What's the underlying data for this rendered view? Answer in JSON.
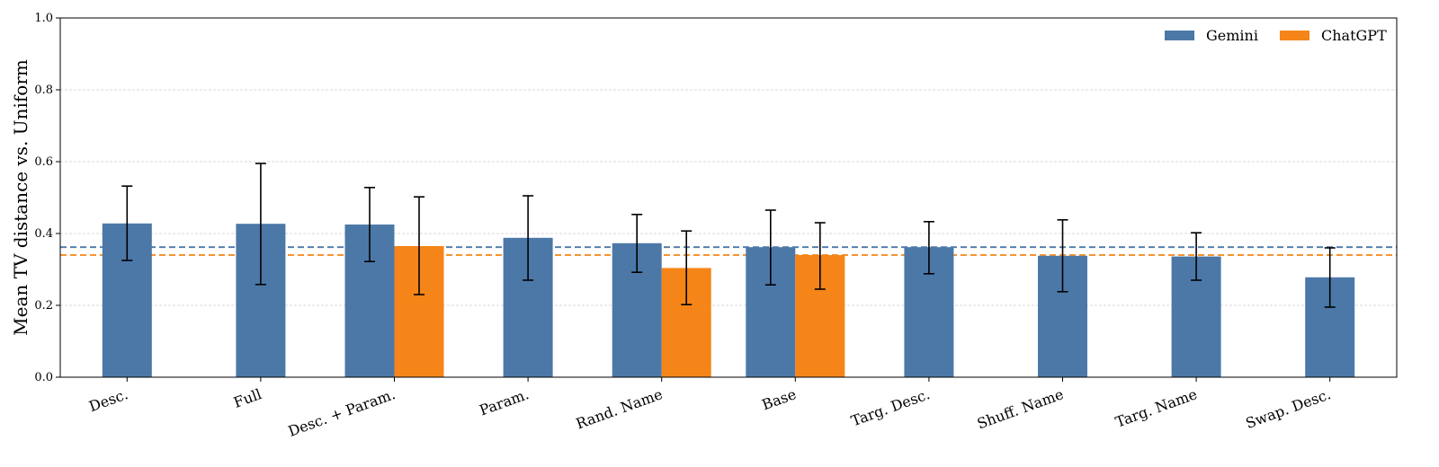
{
  "chart_data": {
    "type": "bar",
    "title": "",
    "xlabel": "",
    "ylabel": "Mean TV distance vs. Uniform",
    "ylim": [
      0,
      1
    ],
    "yticks": [
      "0.0",
      "0.2",
      "0.4",
      "0.6",
      "0.8",
      "1.0"
    ],
    "grid": "horizontal dashed",
    "legend_position": "top-right",
    "categories": [
      "Desc.",
      "Full",
      "Desc. + Param.",
      "Param.",
      "Rand. Name",
      "Base",
      "Targ. Desc.",
      "Shuff. Name",
      "Targ. Name",
      "Swap. Desc."
    ],
    "series": [
      {
        "name": "Gemini",
        "color": "#4c78a8",
        "values": [
          0.428,
          0.427,
          0.425,
          0.388,
          0.373,
          0.362,
          0.362,
          0.338,
          0.336,
          0.278
        ],
        "err_low": [
          0.325,
          0.258,
          0.322,
          0.27,
          0.292,
          0.257,
          0.288,
          0.238,
          0.27,
          0.195
        ],
        "err_high": [
          0.532,
          0.595,
          0.528,
          0.505,
          0.453,
          0.465,
          0.433,
          0.438,
          0.402,
          0.36
        ]
      },
      {
        "name": "ChatGPT",
        "color": "#f58518",
        "values": [
          null,
          null,
          0.365,
          null,
          0.304,
          0.34,
          null,
          null,
          null,
          null
        ],
        "err_low": [
          null,
          null,
          0.23,
          null,
          0.202,
          0.245,
          null,
          null,
          null,
          null
        ],
        "err_high": [
          null,
          null,
          0.502,
          null,
          0.407,
          0.43,
          null,
          null,
          null,
          null
        ]
      }
    ],
    "reference_lines": [
      {
        "series": "Gemini",
        "value": 0.362,
        "color": "#4c78a8",
        "style": "dashed"
      },
      {
        "series": "ChatGPT",
        "value": 0.34,
        "color": "#f58518",
        "style": "dashed"
      }
    ]
  }
}
